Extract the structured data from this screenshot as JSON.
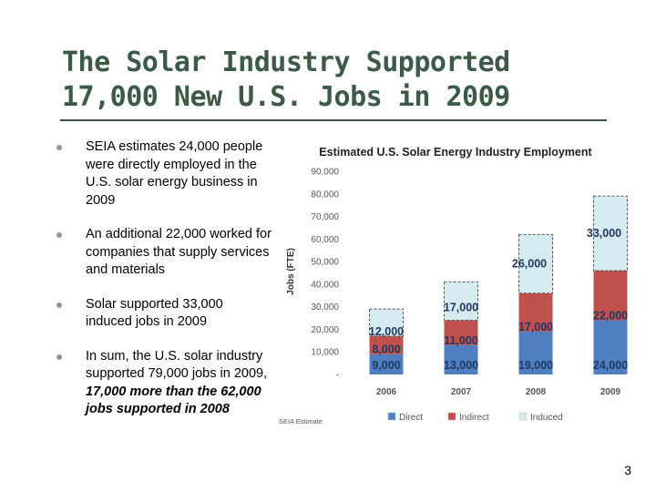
{
  "slide": {
    "title_line1": "The Solar Industry Supported",
    "title_line2": "17,000 New U.S. Jobs in 2009",
    "page_number": "3"
  },
  "bullets": [
    {
      "text": "SEIA estimates 24,000 people were directly employed in the U.S. solar energy business in 2009"
    },
    {
      "text": "An additional 22,000 worked for companies that supply services and materials"
    },
    {
      "text": "Solar supported 33,000 induced jobs in 2009"
    },
    {
      "text_plain": "In sum, the U.S. solar industry supported 79,000 jobs in 2009, ",
      "text_emph": "17,000 more than the 62,000 jobs supported in 2008"
    }
  ],
  "chart_data": {
    "type": "bar",
    "stacked": true,
    "title": "Estimated U.S. Solar Energy Industry Employment",
    "ylabel": "Jobs (FTE)",
    "xlabel": "",
    "ylim": [
      0,
      90000
    ],
    "yticks": [
      "-",
      "10,000",
      "20,000",
      "30,000",
      "40,000",
      "50,000",
      "60,000",
      "70,000",
      "80,000",
      "90,000"
    ],
    "categories": [
      "2006",
      "2007",
      "2008",
      "2009"
    ],
    "estimate_categories": [
      "2006",
      "2007",
      "2008",
      "2009"
    ],
    "series": [
      {
        "name": "Direct",
        "color": "#4f7fc1",
        "values": [
          9000,
          13000,
          19000,
          24000
        ],
        "labels": [
          "9,000",
          "13,000",
          "19,000",
          "24,000"
        ]
      },
      {
        "name": "Indirect",
        "color": "#c0504d",
        "values": [
          8000,
          11000,
          17000,
          22000
        ],
        "labels": [
          "8,000",
          "11,000",
          "17,000",
          "22,000"
        ]
      },
      {
        "name": "Induced",
        "color": "#d6ebef",
        "values": [
          12000,
          17000,
          26000,
          33000
        ],
        "labels": [
          "12,000",
          "17,000",
          "26,000",
          "33,000"
        ]
      }
    ],
    "footnote": "SEIA Estimate",
    "legend_position": "bottom",
    "grid": false
  }
}
